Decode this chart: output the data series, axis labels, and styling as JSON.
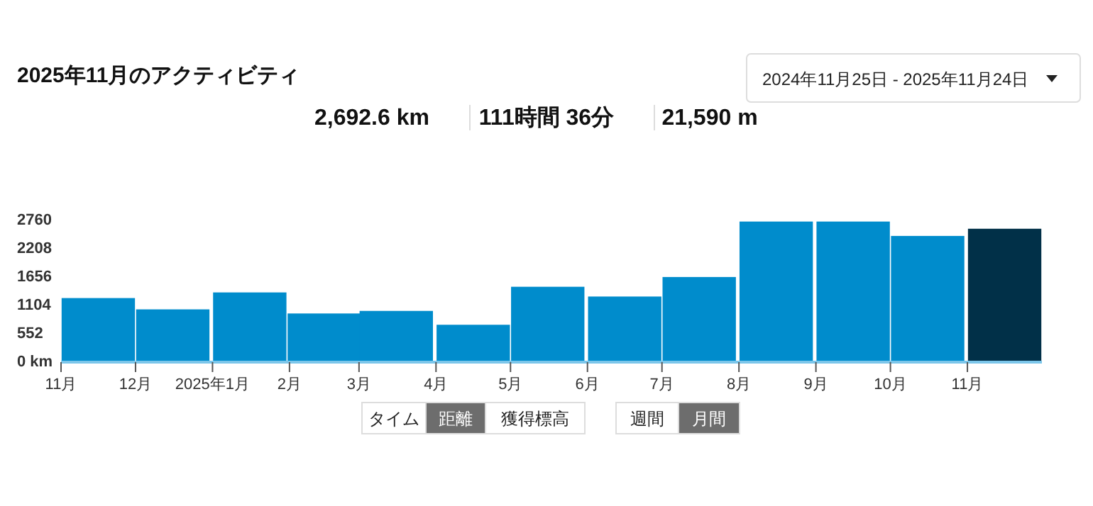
{
  "chart_data": {
    "type": "bar",
    "title": "2025年11月のアクティビティ",
    "x": [
      "2024-11-16",
      "2024-12-16",
      "2025-01-16",
      "2025-02-15",
      "2025-03-16",
      "2025-04-16",
      "2025-05-16",
      "2025-06-16",
      "2025-07-16",
      "2025-08-16",
      "2025-09-16",
      "2025-10-16",
      "2025-11-16"
    ],
    "values": [
      1220,
      1000,
      1330,
      920,
      970,
      700,
      1440,
      1250,
      1630,
      2710,
      2710,
      2430,
      2570
    ],
    "colors": [
      "#008ccc",
      "#008ccc",
      "#008ccc",
      "#008ccc",
      "#008ccc",
      "#008ccc",
      "#008ccc",
      "#008ccc",
      "#008ccc",
      "#008ccc",
      "#008ccc",
      "#008ccc",
      "#013048"
    ],
    "xlim": [
      "2024-11",
      "2025-12"
    ],
    "xticks": [
      {
        "value": "2024-11",
        "label": "11月"
      },
      {
        "value": "2024-12",
        "label": "12月"
      },
      {
        "value": "2025-01",
        "label": "2025年1月"
      },
      {
        "value": "2025-02",
        "label": "2月"
      },
      {
        "value": "2025-03",
        "label": "3月"
      },
      {
        "value": "2025-04",
        "label": "4月"
      },
      {
        "value": "2025-05",
        "label": "5月"
      },
      {
        "value": "2025-06",
        "label": "6月"
      },
      {
        "value": "2025-07",
        "label": "7月"
      },
      {
        "value": "2025-08",
        "label": "8月"
      },
      {
        "value": "2025-09",
        "label": "9月"
      },
      {
        "value": "2025-10",
        "label": "10月"
      },
      {
        "value": "2025-11",
        "label": "11月"
      }
    ],
    "ylim": [
      0,
      2760
    ],
    "yticks": [
      {
        "value": 0,
        "label": "0 km"
      },
      552,
      1104,
      1656,
      2208,
      2760
    ],
    "grid": false,
    "annotations": [
      "2024年11月25日 - 2025年11月24日",
      "2,692.6 km",
      "111時間 36分",
      "21,590 m",
      "タイム",
      "距離",
      "獲得標高",
      "週間",
      "月間"
    ]
  }
}
